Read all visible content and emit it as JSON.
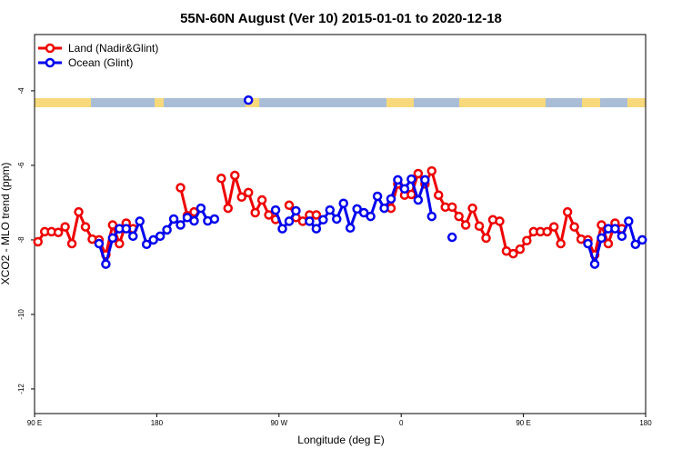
{
  "chart_data": {
    "type": "line",
    "title": "55N-60N August (Ver 10)   2015-01-01 to 2020-12-18",
    "x_label": "Longitude (deg E)",
    "y_label": "XCO2 - MLO trend (ppm)",
    "legend": "top-left",
    "xlim": [
      90,
      540
    ],
    "ylim": [
      -12.66,
      -2.49
    ],
    "xticks": [
      {
        "value": 90,
        "label": "90 E"
      },
      180,
      {
        "value": 270,
        "label": "90 W"
      },
      {
        "value": 360,
        "label": "0"
      },
      {
        "value": 450,
        "label": "90 E"
      },
      {
        "value": 540,
        "label": "180"
      }
    ],
    "yticks": [
      -4,
      -6,
      -8,
      -10,
      -12
    ],
    "x": [
      92.5,
      97.5,
      102.5,
      107.5,
      112.5,
      117.5,
      122.5,
      127.5,
      132.5,
      137.5,
      142.5,
      147.5,
      152.5,
      157.5,
      162.5,
      167.5,
      172.5,
      177.5,
      182.5,
      187.5,
      192.5,
      197.5,
      202.5,
      207.5,
      212.5,
      217.5,
      222.5,
      227.5,
      232.5,
      237.5,
      242.5,
      247.5,
      252.5,
      257.5,
      262.5,
      267.5,
      272.5,
      277.5,
      282.5,
      287.5,
      292.5,
      297.5,
      302.5,
      307.5,
      312.5,
      317.5,
      322.5,
      327.5,
      332.5,
      337.5,
      342.5,
      347.5,
      352.5,
      357.5,
      362.5,
      367.5,
      372.5,
      377.5,
      382.5,
      387.5,
      392.5,
      397.5,
      402.5,
      407.5,
      412.5,
      417.5,
      422.5,
      427.5,
      432.5,
      437.5,
      442.5,
      447.5,
      452.5,
      457.5,
      462.5,
      467.5,
      472.5,
      477.5,
      482.5,
      487.5,
      492.5,
      497.5,
      502.5,
      507.5,
      512.5,
      517.5,
      522.5,
      527.5,
      532.5,
      537.5
    ],
    "series": [
      {
        "name": "Land (Nadir&Glint)",
        "color": "#ee0000",
        "values": [
          -8.05,
          -7.78,
          -7.78,
          -7.8,
          -7.65,
          -8.1,
          -7.25,
          -7.65,
          -7.98,
          -8.0,
          -8.4,
          -7.6,
          -8.1,
          -7.55,
          -7.7,
          null,
          null,
          null,
          null,
          null,
          null,
          -6.6,
          -7.35,
          -7.25,
          null,
          null,
          null,
          -6.35,
          -7.15,
          -6.27,
          -6.85,
          -6.73,
          -7.27,
          -6.93,
          -7.33,
          -7.45,
          null,
          -7.07,
          -7.4,
          -7.5,
          -7.33,
          -7.33,
          null,
          null,
          null,
          null,
          null,
          null,
          null,
          null,
          null,
          null,
          -7.15,
          -6.5,
          -6.8,
          -6.78,
          -6.22,
          -6.5,
          -6.15,
          -6.8,
          -7.12,
          -7.12,
          -7.37,
          -7.6,
          -7.15,
          -7.63,
          -7.95,
          -7.46,
          -7.5,
          -8.3,
          -8.37,
          -8.25,
          -8.02,
          -7.78,
          -7.78,
          -7.78,
          -7.65,
          -8.1,
          -7.25,
          -7.65,
          -7.98,
          -8.0,
          -8.4,
          -7.6,
          -8.1,
          -7.55,
          -7.7,
          null,
          null,
          null
        ]
      },
      {
        "name": "Ocean (Glint)",
        "color": "#0000ee",
        "values": [
          null,
          null,
          null,
          null,
          null,
          null,
          null,
          null,
          null,
          -8.1,
          -8.65,
          -7.95,
          -7.7,
          -7.7,
          -7.9,
          -7.5,
          -8.12,
          -8.0,
          -7.9,
          -7.73,
          -7.44,
          -7.6,
          -7.4,
          -7.49,
          -7.15,
          -7.49,
          -7.44,
          null,
          null,
          null,
          null,
          -4.25,
          null,
          null,
          null,
          -7.2,
          -7.7,
          -7.5,
          -7.22,
          null,
          -7.5,
          -7.7,
          -7.46,
          -7.2,
          -7.44,
          -7.02,
          -7.68,
          -7.17,
          -7.27,
          -7.37,
          -6.83,
          -7.15,
          -6.9,
          -6.39,
          -6.63,
          -6.37,
          -6.93,
          -6.39,
          -7.37,
          null,
          null,
          -7.93,
          null,
          null,
          null,
          null,
          null,
          null,
          null,
          null,
          null,
          null,
          null,
          null,
          null,
          null,
          null,
          null,
          null,
          null,
          null,
          -8.1,
          -8.65,
          -7.95,
          -7.7,
          -7.7,
          -7.9,
          -7.5,
          -8.12,
          -8.0
        ]
      }
    ]
  }
}
